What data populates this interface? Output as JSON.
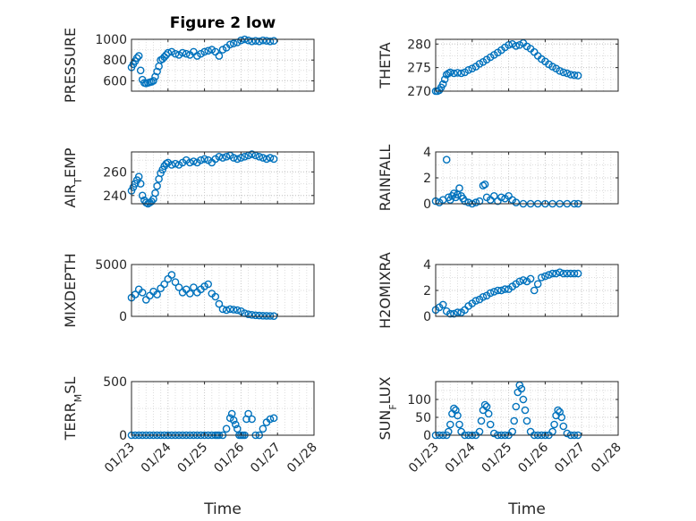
{
  "colors": {
    "marker": "#0072bd",
    "axis": "#262626",
    "grid": "#c8c8c8"
  },
  "chart_data": [
    {
      "type": "scatter",
      "title": "Figure 2 low",
      "ylabel": "PRESSURE",
      "xlabel": "",
      "ylim": [
        500,
        1000
      ],
      "yticks": [
        600,
        800,
        1000
      ],
      "xlim": [
        0,
        5
      ],
      "xticklabels": [],
      "grid": true,
      "x": [
        0,
        0.05,
        0.1,
        0.15,
        0.2,
        0.25,
        0.3,
        0.35,
        0.4,
        0.45,
        0.5,
        0.55,
        0.6,
        0.65,
        0.7,
        0.75,
        0.8,
        0.85,
        0.9,
        0.95,
        1.0,
        1.1,
        1.2,
        1.3,
        1.4,
        1.5,
        1.6,
        1.7,
        1.8,
        1.9,
        2.0,
        2.1,
        2.2,
        2.3,
        2.4,
        2.5,
        2.6,
        2.7,
        2.8,
        2.9,
        3.0,
        3.1,
        3.2,
        3.3,
        3.4,
        3.5,
        3.6,
        3.7,
        3.8,
        3.9
      ],
      "y": [
        730,
        760,
        790,
        820,
        840,
        700,
        610,
        580,
        575,
        580,
        585,
        590,
        600,
        640,
        690,
        740,
        800,
        810,
        830,
        850,
        870,
        880,
        860,
        850,
        870,
        860,
        850,
        880,
        840,
        860,
        880,
        890,
        900,
        880,
        840,
        900,
        920,
        950,
        960,
        970,
        990,
        1000,
        990,
        980,
        985,
        980,
        990,
        985,
        980,
        985
      ]
    },
    {
      "type": "scatter",
      "ylabel": "THETA",
      "xlabel": "",
      "ylim": [
        270,
        281
      ],
      "yticks": [
        270,
        275,
        280
      ],
      "xlim": [
        0,
        5
      ],
      "xticklabels": [],
      "grid": true,
      "x": [
        0,
        0.05,
        0.1,
        0.15,
        0.2,
        0.25,
        0.3,
        0.35,
        0.4,
        0.5,
        0.6,
        0.7,
        0.8,
        0.9,
        1.0,
        1.1,
        1.2,
        1.3,
        1.4,
        1.5,
        1.6,
        1.7,
        1.8,
        1.9,
        2.0,
        2.1,
        2.2,
        2.3,
        2.4,
        2.5,
        2.6,
        2.7,
        2.8,
        2.9,
        3.0,
        3.1,
        3.2,
        3.3,
        3.4,
        3.5,
        3.6,
        3.7,
        3.8,
        3.9
      ],
      "y": [
        270,
        270,
        270.2,
        270.8,
        271.5,
        272.5,
        273.5,
        273.8,
        274,
        273.8,
        273.9,
        273.8,
        274,
        274.5,
        274.8,
        275.2,
        275.8,
        276.2,
        276.7,
        277.2,
        277.7,
        278.2,
        278.7,
        279.3,
        279.8,
        280,
        279.6,
        279.8,
        280.2,
        279.5,
        279,
        278.3,
        277.5,
        276.8,
        276.3,
        275.7,
        275.2,
        274.8,
        274.3,
        274,
        273.8,
        273.5,
        273.4,
        273.3
      ]
    },
    {
      "type": "scatter",
      "ylabel": "AIR_TEMP",
      "xlabel": "",
      "ylim": [
        233,
        277
      ],
      "yticks": [
        240,
        260
      ],
      "xlim": [
        0,
        5
      ],
      "xticklabels": [],
      "grid": true,
      "x": [
        0,
        0.05,
        0.1,
        0.15,
        0.2,
        0.25,
        0.3,
        0.35,
        0.4,
        0.45,
        0.5,
        0.55,
        0.6,
        0.65,
        0.7,
        0.75,
        0.8,
        0.85,
        0.9,
        0.95,
        1.0,
        1.1,
        1.2,
        1.3,
        1.4,
        1.5,
        1.6,
        1.7,
        1.8,
        1.9,
        2.0,
        2.1,
        2.2,
        2.3,
        2.4,
        2.5,
        2.6,
        2.7,
        2.8,
        2.9,
        3.0,
        3.1,
        3.2,
        3.3,
        3.4,
        3.5,
        3.6,
        3.7,
        3.8,
        3.9
      ],
      "y": [
        244,
        247,
        250,
        253,
        256,
        250,
        240,
        236,
        234,
        233,
        234,
        235,
        237,
        242,
        248,
        254,
        259,
        262,
        265,
        267,
        268,
        266,
        267,
        266,
        268,
        270,
        268,
        269,
        268,
        270,
        271,
        270,
        268,
        271,
        273,
        272,
        273,
        274,
        272,
        271,
        272,
        273,
        274,
        275,
        274,
        273,
        272,
        271,
        272,
        271
      ]
    },
    {
      "type": "scatter",
      "ylabel": "RAINFALL",
      "xlabel": "",
      "ylim": [
        0,
        4
      ],
      "yticks": [
        0,
        2,
        4
      ],
      "xlim": [
        0,
        5
      ],
      "xticklabels": [],
      "grid": true,
      "x": [
        0,
        0.1,
        0.2,
        0.3,
        0.35,
        0.4,
        0.45,
        0.5,
        0.55,
        0.6,
        0.65,
        0.7,
        0.75,
        0.8,
        0.9,
        1.0,
        1.1,
        1.2,
        1.3,
        1.35,
        1.4,
        1.5,
        1.6,
        1.7,
        1.8,
        1.9,
        2.0,
        2.1,
        2.2,
        2.4,
        2.6,
        2.8,
        3.0,
        3.2,
        3.4,
        3.6,
        3.8,
        3.9
      ],
      "y": [
        0.2,
        0.1,
        0.3,
        3.4,
        0.5,
        0.3,
        0.6,
        0.8,
        0.5,
        0.7,
        1.2,
        0.6,
        0.4,
        0.2,
        0.1,
        0,
        0.1,
        0.2,
        1.4,
        1.5,
        0.5,
        0.3,
        0.6,
        0.2,
        0.5,
        0.4,
        0.6,
        0.3,
        0.1,
        0,
        0,
        0,
        0,
        0,
        0,
        0,
        0,
        0
      ]
    },
    {
      "type": "scatter",
      "ylabel": "MIXDEPTH",
      "xlabel": "",
      "ylim": [
        0,
        5000
      ],
      "yticks": [
        0,
        5000
      ],
      "xlim": [
        0,
        5
      ],
      "xticklabels": [],
      "grid": true,
      "x": [
        0,
        0.1,
        0.2,
        0.3,
        0.4,
        0.5,
        0.6,
        0.7,
        0.8,
        0.9,
        1.0,
        1.1,
        1.2,
        1.3,
        1.4,
        1.5,
        1.6,
        1.7,
        1.8,
        1.9,
        2.0,
        2.1,
        2.2,
        2.3,
        2.4,
        2.5,
        2.6,
        2.7,
        2.8,
        2.9,
        3.0,
        3.1,
        3.2,
        3.3,
        3.4,
        3.5,
        3.6,
        3.7,
        3.8,
        3.9
      ],
      "y": [
        1800,
        2100,
        2600,
        2300,
        1600,
        2000,
        2400,
        2100,
        2700,
        3100,
        3600,
        4000,
        3300,
        2800,
        2300,
        2600,
        2200,
        2800,
        2300,
        2600,
        2900,
        3100,
        2200,
        1900,
        1200,
        700,
        600,
        700,
        650,
        600,
        500,
        300,
        200,
        150,
        100,
        80,
        60,
        50,
        40,
        30
      ]
    },
    {
      "type": "scatter",
      "ylabel": "H2OMIXRA",
      "xlabel": "",
      "ylim": [
        0,
        4
      ],
      "yticks": [
        0,
        2,
        4
      ],
      "xlim": [
        0,
        5
      ],
      "xticklabels": [],
      "grid": true,
      "x": [
        0,
        0.1,
        0.2,
        0.3,
        0.4,
        0.5,
        0.6,
        0.7,
        0.8,
        0.9,
        1.0,
        1.1,
        1.2,
        1.3,
        1.4,
        1.5,
        1.6,
        1.7,
        1.8,
        1.9,
        2.0,
        2.1,
        2.2,
        2.3,
        2.4,
        2.5,
        2.6,
        2.7,
        2.8,
        2.9,
        3.0,
        3.1,
        3.2,
        3.3,
        3.4,
        3.5,
        3.6,
        3.7,
        3.8,
        3.9
      ],
      "y": [
        0.5,
        0.7,
        0.9,
        0.4,
        0.2,
        0.2,
        0.3,
        0.3,
        0.5,
        0.8,
        1.0,
        1.2,
        1.3,
        1.5,
        1.6,
        1.8,
        1.9,
        2.0,
        2.0,
        2.1,
        2.1,
        2.3,
        2.5,
        2.7,
        2.8,
        2.7,
        2.9,
        2.0,
        2.5,
        3.0,
        3.1,
        3.2,
        3.3,
        3.3,
        3.4,
        3.3,
        3.3,
        3.3,
        3.3,
        3.3
      ]
    },
    {
      "type": "scatter",
      "ylabel": "TERR_MSL",
      "xlabel": "Time",
      "ylim": [
        0,
        500
      ],
      "yticks": [
        0,
        500
      ],
      "xlim": [
        0,
        5
      ],
      "xticklabels": [
        "01/23",
        "01/24",
        "01/25",
        "01/26",
        "01/27",
        "01/28"
      ],
      "grid": true,
      "x": [
        0,
        0.1,
        0.2,
        0.3,
        0.4,
        0.5,
        0.6,
        0.7,
        0.8,
        0.9,
        1.0,
        1.1,
        1.2,
        1.3,
        1.4,
        1.5,
        1.6,
        1.7,
        1.8,
        1.9,
        2.0,
        2.1,
        2.2,
        2.3,
        2.35,
        2.4,
        2.5,
        2.6,
        2.7,
        2.75,
        2.8,
        2.85,
        2.9,
        2.95,
        3.0,
        3.05,
        3.1,
        3.15,
        3.2,
        3.3,
        3.4,
        3.5,
        3.6,
        3.7,
        3.8,
        3.9
      ],
      "y": [
        0,
        0,
        0,
        0,
        0,
        0,
        0,
        0,
        0,
        0,
        0,
        0,
        0,
        0,
        0,
        0,
        0,
        0,
        0,
        0,
        0,
        0,
        0,
        0,
        0,
        0,
        0,
        60,
        160,
        200,
        140,
        100,
        60,
        0,
        0,
        0,
        0,
        150,
        200,
        150,
        0,
        0,
        60,
        120,
        150,
        160
      ]
    },
    {
      "type": "scatter",
      "ylabel": "SUN_FLUX",
      "xlabel": "Time",
      "ylim": [
        0,
        150
      ],
      "yticks": [
        0,
        50,
        100
      ],
      "xlim": [
        0,
        5
      ],
      "xticklabels": [
        "01/23",
        "01/24",
        "01/25",
        "01/26",
        "01/27",
        "01/28"
      ],
      "grid": true,
      "x": [
        0,
        0.1,
        0.2,
        0.3,
        0.35,
        0.4,
        0.45,
        0.5,
        0.55,
        0.6,
        0.65,
        0.7,
        0.8,
        0.9,
        1.0,
        1.1,
        1.2,
        1.25,
        1.3,
        1.35,
        1.4,
        1.45,
        1.5,
        1.6,
        1.7,
        1.8,
        1.9,
        2.0,
        2.1,
        2.15,
        2.2,
        2.25,
        2.3,
        2.35,
        2.4,
        2.45,
        2.5,
        2.6,
        2.7,
        2.8,
        2.9,
        3.0,
        3.1,
        3.2,
        3.25,
        3.3,
        3.35,
        3.4,
        3.45,
        3.5,
        3.6,
        3.7,
        3.8,
        3.9
      ],
      "y": [
        0,
        0,
        0,
        0,
        10,
        30,
        60,
        75,
        70,
        55,
        30,
        10,
        0,
        0,
        0,
        0,
        10,
        40,
        70,
        85,
        80,
        60,
        30,
        5,
        0,
        0,
        0,
        0,
        10,
        40,
        80,
        120,
        140,
        130,
        100,
        70,
        40,
        10,
        0,
        0,
        0,
        0,
        0,
        10,
        30,
        55,
        70,
        65,
        50,
        25,
        5,
        0,
        0,
        0
      ]
    }
  ]
}
